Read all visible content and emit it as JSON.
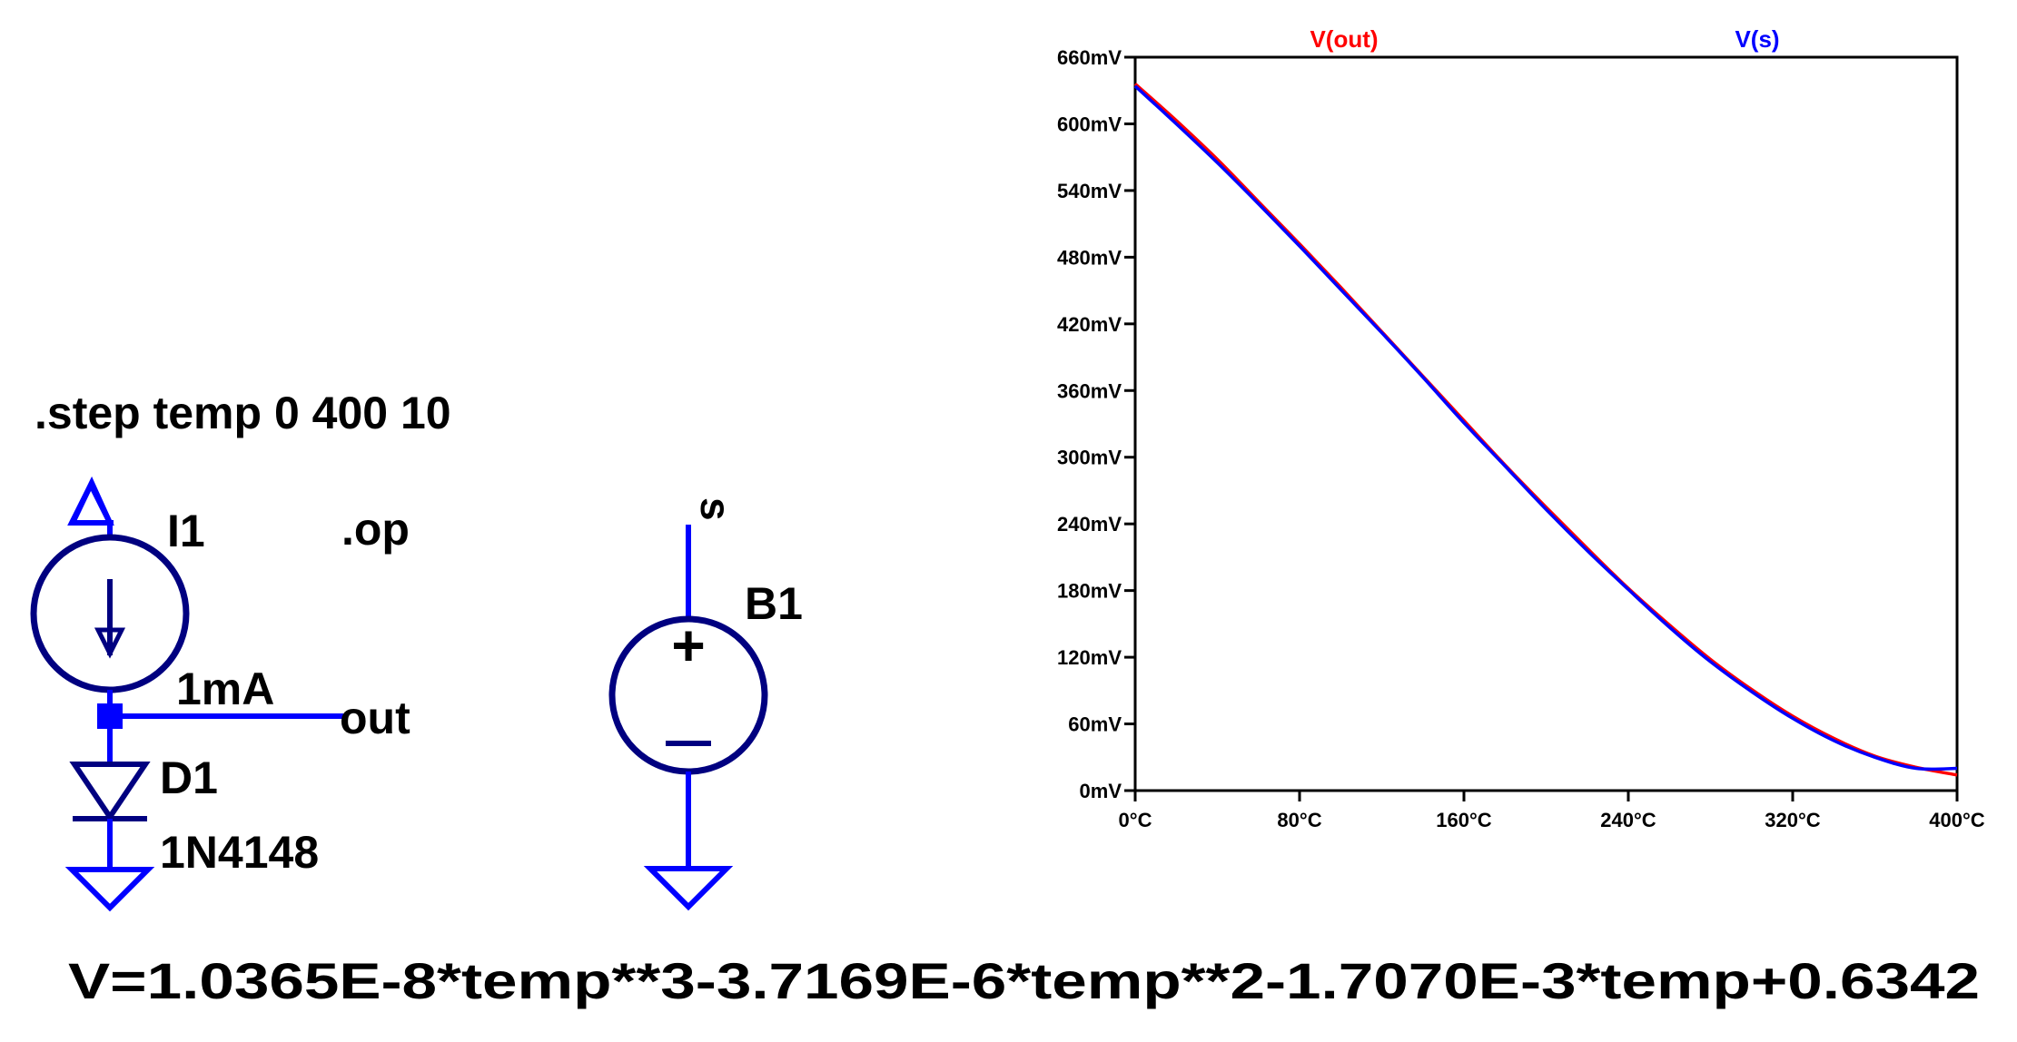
{
  "schematic": {
    "step_directive": ".step temp 0 400 10",
    "op_directive": ".op",
    "current_source": {
      "name": "I1",
      "value": "1mA"
    },
    "diode": {
      "name": "D1",
      "model": "1N4148"
    },
    "bsource": {
      "name": "B1",
      "plus_sign": "+",
      "minus_sign": "−"
    },
    "net_labels": {
      "out": "out",
      "s": "s"
    },
    "equation": "V=1.0365E-8*temp**3-3.7169E-6*temp**2-1.7070E-3*temp+0.6342",
    "colors": {
      "wire": "#0000ff",
      "symbol": "#000080",
      "text": "#000000"
    }
  },
  "chart_data": {
    "type": "line",
    "x_ticks": [
      "0°C",
      "80°C",
      "160°C",
      "240°C",
      "320°C",
      "400°C"
    ],
    "y_ticks": [
      "0mV",
      "60mV",
      "120mV",
      "180mV",
      "240mV",
      "300mV",
      "360mV",
      "420mV",
      "480mV",
      "540mV",
      "600mV",
      "660mV"
    ],
    "xlim": [
      0,
      400
    ],
    "ylim": [
      0,
      660
    ],
    "x_unit": "°C",
    "y_unit": "mV",
    "grid": false,
    "legend_position": "top",
    "series": [
      {
        "name": "V(out)",
        "color": "#ff0000",
        "x": [
          0,
          20,
          40,
          60,
          80,
          100,
          120,
          140,
          160,
          180,
          200,
          220,
          240,
          260,
          280,
          300,
          320,
          340,
          360,
          380,
          400
        ],
        "values": [
          636,
          603,
          568,
          530,
          492,
          453,
          413,
          373,
          333,
          293,
          255,
          218,
          182,
          149,
          118,
          91,
          67,
          47,
          31,
          21,
          14
        ]
      },
      {
        "name": "V(s)",
        "color": "#0000ff",
        "x": [
          0,
          20,
          40,
          60,
          80,
          100,
          120,
          140,
          160,
          180,
          200,
          220,
          240,
          260,
          280,
          300,
          320,
          340,
          360,
          380,
          400
        ],
        "values": [
          634,
          600,
          565,
          528,
          490,
          451,
          412,
          372,
          331,
          292,
          253,
          216,
          181,
          147,
          116,
          89,
          65,
          45,
          30,
          20,
          20
        ]
      }
    ]
  }
}
